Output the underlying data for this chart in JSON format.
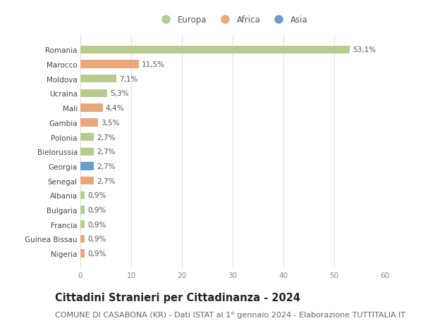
{
  "countries": [
    "Romania",
    "Marocco",
    "Moldova",
    "Ucraina",
    "Mali",
    "Gambia",
    "Polonia",
    "Bielorussia",
    "Georgia",
    "Senegal",
    "Albania",
    "Bulgaria",
    "Francia",
    "Guinea Bissau",
    "Nigeria"
  ],
  "values": [
    53.1,
    11.5,
    7.1,
    5.3,
    4.4,
    3.5,
    2.7,
    2.7,
    2.7,
    2.7,
    0.9,
    0.9,
    0.9,
    0.9,
    0.9
  ],
  "labels": [
    "53,1%",
    "11,5%",
    "7,1%",
    "5,3%",
    "4,4%",
    "3,5%",
    "2,7%",
    "2,7%",
    "2,7%",
    "2,7%",
    "0,9%",
    "0,9%",
    "0,9%",
    "0,9%",
    "0,9%"
  ],
  "continents": [
    "Europa",
    "Africa",
    "Europa",
    "Europa",
    "Africa",
    "Africa",
    "Europa",
    "Europa",
    "Asia",
    "Africa",
    "Europa",
    "Europa",
    "Europa",
    "Africa",
    "Africa"
  ],
  "colors": {
    "Europa": "#b5cc8e",
    "Africa": "#e8a87c",
    "Asia": "#6b9ec7"
  },
  "xlim": [
    0,
    60
  ],
  "xticks": [
    0,
    10,
    20,
    30,
    40,
    50,
    60
  ],
  "bg_color": "#ffffff",
  "grid_color": "#e0e0e0",
  "title": "Cittadini Stranieri per Cittadinanza - 2024",
  "subtitle": "COMUNE DI CASABONA (KR) - Dati ISTAT al 1° gennaio 2024 - Elaborazione TUTTITALIA.IT",
  "title_fontsize": 10.5,
  "subtitle_fontsize": 8,
  "bar_height": 0.55,
  "label_fontsize": 7.5,
  "tick_fontsize": 7.5,
  "legend_fontsize": 8.5
}
